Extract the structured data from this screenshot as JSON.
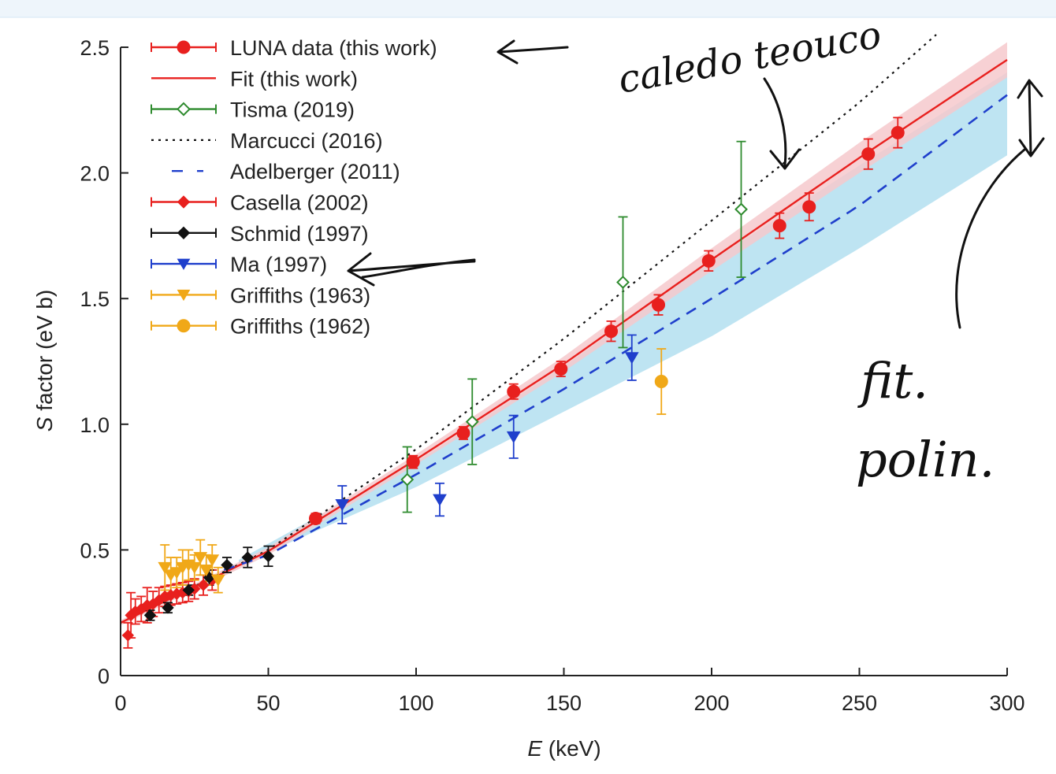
{
  "chart_data": {
    "type": "scatter",
    "xlabel_var": "E",
    "xlabel_unit": " (keV)",
    "ylabel_var": "S",
    "ylabel_unit": " factor (eV b)",
    "xlim": [
      0,
      300
    ],
    "ylim": [
      0,
      2.5
    ],
    "xticks": [
      0,
      50,
      100,
      150,
      200,
      250,
      300
    ],
    "xtick_labels": [
      "0",
      "50",
      "100",
      "150",
      "200",
      "250",
      "300"
    ],
    "yticks": [
      0,
      0.5,
      1.0,
      1.5,
      2.0,
      2.5
    ],
    "ytick_labels": [
      "0",
      "0.5",
      "1.0",
      "1.5",
      "2.0",
      "2.5"
    ],
    "grid": false,
    "legend_position": "top-left",
    "bands": [
      {
        "name": "Adelberger (2011)",
        "color": "#b3dff0",
        "x": [
          40,
          100,
          150,
          200,
          250,
          300
        ],
        "lower": [
          0.44,
          0.75,
          1.05,
          1.35,
          1.7,
          2.07
        ],
        "upper": [
          0.46,
          0.85,
          1.23,
          1.65,
          2.03,
          2.4
        ]
      },
      {
        "name": "Fit (this work)",
        "color": "#f6c9cc",
        "x": [
          0,
          50,
          100,
          150,
          200,
          250,
          300
        ],
        "lower": [
          0.2,
          0.48,
          0.84,
          1.21,
          1.61,
          2.0,
          2.38
        ],
        "upper": [
          0.22,
          0.51,
          0.88,
          1.27,
          1.7,
          2.12,
          2.52
        ]
      }
    ],
    "lines": [
      {
        "name": "Marcucci (2016)",
        "color": "#111111",
        "dash": "3,6",
        "width": 2.2,
        "x": [
          0,
          50,
          100,
          150,
          200,
          250,
          276
        ],
        "y": [
          0.21,
          0.5,
          0.9,
          1.34,
          1.81,
          2.28,
          2.55
        ]
      },
      {
        "name": "Fit (this work)",
        "color": "#e8201e",
        "dash": "",
        "width": 2.4,
        "x": [
          0,
          50,
          100,
          150,
          200,
          250,
          300
        ],
        "y": [
          0.21,
          0.495,
          0.86,
          1.24,
          1.655,
          2.06,
          2.45
        ]
      },
      {
        "name": "Adelberger (2011)",
        "color": "#1f3fcc",
        "dash": "14,10",
        "width": 2.6,
        "x": [
          35,
          50,
          100,
          150,
          200,
          250,
          300
        ],
        "y": [
          0.42,
          0.48,
          0.8,
          1.14,
          1.5,
          1.87,
          2.31
        ]
      }
    ],
    "series": [
      {
        "name": "LUNA data (this work)",
        "color": "#e8201e",
        "marker": "circle",
        "filled": true,
        "points": [
          [
            66,
            0.625,
            0.02
          ],
          [
            99,
            0.85,
            0.025
          ],
          [
            116,
            0.965,
            0.025
          ],
          [
            133,
            1.13,
            0.03
          ],
          [
            149,
            1.22,
            0.03
          ],
          [
            166,
            1.37,
            0.04
          ],
          [
            182,
            1.475,
            0.04
          ],
          [
            199,
            1.65,
            0.04
          ],
          [
            223,
            1.79,
            0.05
          ],
          [
            233,
            1.865,
            0.055
          ],
          [
            253,
            2.075,
            0.06
          ],
          [
            263,
            2.16,
            0.06
          ]
        ]
      },
      {
        "name": "Tisma (2019)",
        "color": "#2e8b2e",
        "marker": "diamond",
        "filled": false,
        "points": [
          [
            97,
            0.78,
            0.13
          ],
          [
            119,
            1.01,
            0.17
          ],
          [
            170,
            1.565,
            0.26
          ],
          [
            210,
            1.855,
            0.27
          ]
        ]
      },
      {
        "name": "Casella (2002)",
        "color": "#e8201e",
        "marker": "diamond",
        "filled": true,
        "points": [
          [
            2.5,
            0.16,
            0.05
          ],
          [
            3.5,
            0.24,
            0.09
          ],
          [
            5,
            0.255,
            0.05
          ],
          [
            7,
            0.265,
            0.05
          ],
          [
            9,
            0.28,
            0.07
          ],
          [
            11,
            0.285,
            0.05
          ],
          [
            13,
            0.3,
            0.05
          ],
          [
            15,
            0.315,
            0.04
          ],
          [
            17,
            0.32,
            0.04
          ],
          [
            19,
            0.325,
            0.04
          ],
          [
            21,
            0.33,
            0.04
          ],
          [
            23,
            0.335,
            0.04
          ],
          [
            25,
            0.345,
            0.04
          ],
          [
            28,
            0.36,
            0.04
          ],
          [
            31,
            0.38,
            0.04
          ]
        ]
      },
      {
        "name": "Schmid (1997)",
        "color": "#111111",
        "marker": "diamond",
        "filled": true,
        "points": [
          [
            10,
            0.24,
            0.02
          ],
          [
            16,
            0.27,
            0.02
          ],
          [
            23,
            0.34,
            0.02
          ],
          [
            30,
            0.39,
            0.03
          ],
          [
            36,
            0.44,
            0.03
          ],
          [
            43,
            0.47,
            0.04
          ],
          [
            50,
            0.475,
            0.04
          ]
        ]
      },
      {
        "name": "Ma (1997)",
        "color": "#1f3fcc",
        "marker": "triangle-down",
        "filled": true,
        "points": [
          [
            75,
            0.68,
            0.075
          ],
          [
            108,
            0.7,
            0.065
          ],
          [
            133,
            0.95,
            0.085
          ],
          [
            173,
            1.265,
            0.09
          ]
        ]
      },
      {
        "name": "Griffiths (1963)",
        "color": "#f0a818",
        "marker": "triangle-down",
        "filled": true,
        "points": [
          [
            15,
            0.43,
            0.09
          ],
          [
            17,
            0.4,
            0.07
          ],
          [
            19,
            0.41,
            0.06
          ],
          [
            21,
            0.43,
            0.07
          ],
          [
            23,
            0.44,
            0.06
          ],
          [
            25,
            0.43,
            0.05
          ],
          [
            27,
            0.47,
            0.07
          ],
          [
            29,
            0.42,
            0.06
          ],
          [
            31,
            0.46,
            0.06
          ],
          [
            33,
            0.38,
            0.05
          ]
        ]
      },
      {
        "name": "Griffiths (1962)",
        "color": "#f0a818",
        "marker": "circle",
        "filled": true,
        "points": [
          [
            183,
            1.17,
            0.13
          ]
        ]
      }
    ]
  },
  "legend": [
    {
      "label": "LUNA data (this work)",
      "color": "#e8201e",
      "marker": "circle",
      "filled": true,
      "line": "solid",
      "caps": true
    },
    {
      "label": "Fit (this work)",
      "color": "#e8201e",
      "marker": "",
      "filled": false,
      "line": "solid",
      "caps": false
    },
    {
      "label": "Tisma (2019)",
      "color": "#2e8b2e",
      "marker": "diamond",
      "filled": false,
      "line": "solid",
      "caps": true
    },
    {
      "label": "Marcucci (2016)",
      "color": "#111111",
      "marker": "",
      "filled": false,
      "line": "dotted",
      "caps": false
    },
    {
      "label": "Adelberger (2011)",
      "color": "#1f3fcc",
      "marker": "",
      "filled": false,
      "line": "dashed",
      "caps": false
    },
    {
      "label": "Casella (2002)",
      "color": "#e8201e",
      "marker": "diamond",
      "filled": true,
      "line": "solid",
      "caps": true
    },
    {
      "label": "Schmid (1997)",
      "color": "#111111",
      "marker": "diamond",
      "filled": true,
      "line": "solid",
      "caps": true
    },
    {
      "label": "Ma (1997)",
      "color": "#1f3fcc",
      "marker": "triangle-down",
      "filled": true,
      "line": "solid",
      "caps": true
    },
    {
      "label": "Griffiths (1963)",
      "color": "#f0a818",
      "marker": "triangle-down",
      "filled": true,
      "line": "solid",
      "caps": true
    },
    {
      "label": "Griffiths (1962)",
      "color": "#f0a818",
      "marker": "circle",
      "filled": true,
      "line": "solid",
      "caps": true
    }
  ],
  "annotations": {
    "note_theory": "caledo teouco",
    "note_fit_1": "fit.",
    "note_fit_2": "polin."
  }
}
